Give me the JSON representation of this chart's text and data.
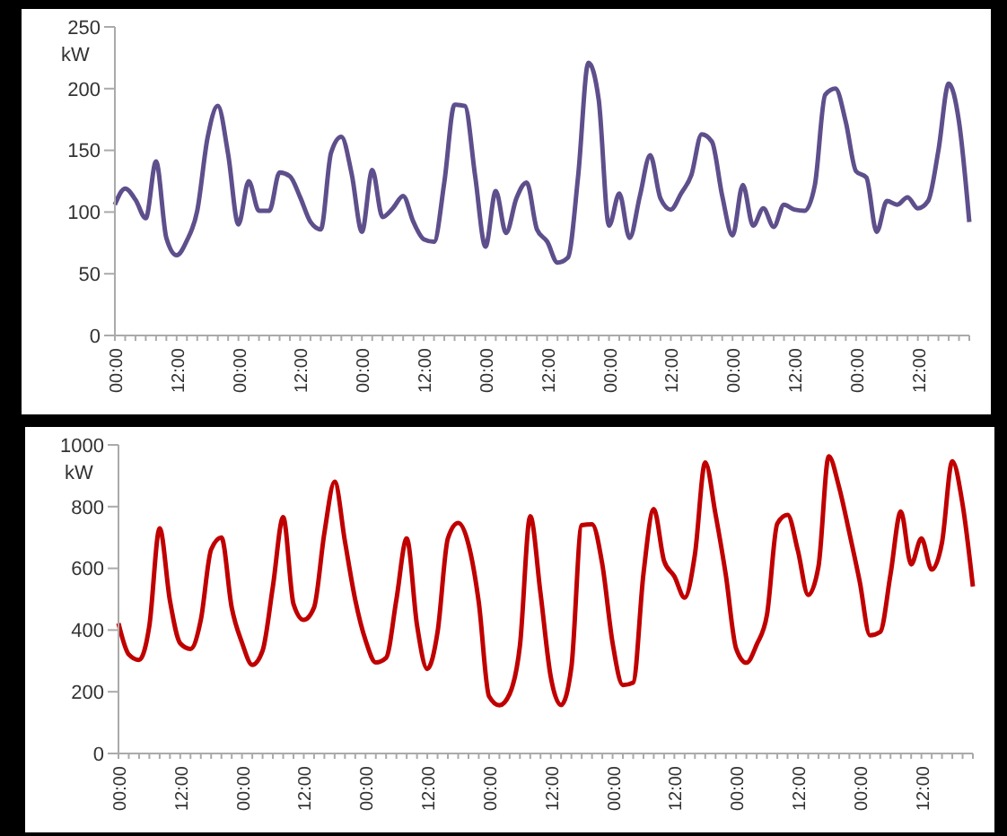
{
  "chart_data": [
    {
      "type": "line",
      "ylabel": "kW",
      "categories": [
        "00:00",
        null,
        null,
        null,
        null,
        null,
        "12:00",
        null,
        null,
        null,
        null,
        null,
        "00:00",
        null,
        null,
        null,
        null,
        null,
        "12:00",
        null,
        null,
        null,
        null,
        null,
        "00:00",
        null,
        null,
        null,
        null,
        null,
        "12:00",
        null,
        null,
        null,
        null,
        null,
        "00:00",
        null,
        null,
        null,
        null,
        null,
        "12:00",
        null,
        null,
        null,
        null,
        null,
        "00:00",
        null,
        null,
        null,
        null,
        null,
        "12:00",
        null,
        null,
        null,
        null,
        null,
        "00:00",
        null,
        null,
        null,
        null,
        null,
        "12:00",
        null,
        null,
        null,
        null,
        null,
        "00:00",
        null,
        null,
        null,
        null,
        null,
        "12:00",
        null,
        null,
        null,
        null,
        null
      ],
      "ylim": [
        0,
        250
      ],
      "yticks": [
        0,
        50,
        100,
        150,
        200,
        250
      ],
      "series": [
        {
          "color": "#5e4f8c",
          "values": [
            106,
            119,
            110,
            95,
            141,
            79,
            65,
            77,
            101,
            160,
            186,
            147,
            90,
            125,
            101,
            101,
            132,
            129,
            112,
            92,
            86,
            148,
            161,
            131,
            84,
            134,
            96,
            103,
            113,
            92,
            78,
            76,
            124,
            187,
            186,
            129,
            72,
            117,
            83,
            111,
            124,
            86,
            76,
            59,
            63,
            129,
            221,
            191,
            89,
            115,
            79,
            113,
            146,
            111,
            102,
            115,
            130,
            163,
            157,
            113,
            81,
            122,
            89,
            103,
            88,
            106,
            102,
            101,
            122,
            195,
            200,
            173,
            133,
            128,
            84,
            109,
            106,
            112,
            103,
            109,
            150,
            204,
            173,
            92
          ]
        }
      ]
    },
    {
      "type": "line",
      "ylabel": "kW",
      "categories": [
        "00:00",
        null,
        null,
        null,
        null,
        null,
        "12:00",
        null,
        null,
        null,
        null,
        null,
        "00:00",
        null,
        null,
        null,
        null,
        null,
        "12:00",
        null,
        null,
        null,
        null,
        null,
        "00:00",
        null,
        null,
        null,
        null,
        null,
        "12:00",
        null,
        null,
        null,
        null,
        null,
        "00:00",
        null,
        null,
        null,
        null,
        null,
        "12:00",
        null,
        null,
        null,
        null,
        null,
        "00:00",
        null,
        null,
        null,
        null,
        null,
        "12:00",
        null,
        null,
        null,
        null,
        null,
        "00:00",
        null,
        null,
        null,
        null,
        null,
        "12:00",
        null,
        null,
        null,
        null,
        null,
        "00:00",
        null,
        null,
        null,
        null,
        null,
        "12:00",
        null,
        null,
        null,
        null,
        null
      ],
      "ylim": [
        0,
        1000
      ],
      "yticks": [
        0,
        200,
        400,
        600,
        800,
        1000
      ],
      "series": [
        {
          "color": "#c00000",
          "values": [
            422,
            321,
            303,
            414,
            730,
            495,
            357,
            339,
            433,
            661,
            700,
            473,
            359,
            287,
            333,
            541,
            766,
            485,
            433,
            473,
            714,
            881,
            687,
            498,
            367,
            295,
            310,
            499,
            697,
            416,
            274,
            394,
            697,
            747,
            678,
            490,
            185,
            156,
            193,
            350,
            769,
            518,
            247,
            157,
            280,
            740,
            743,
            613,
            358,
            222,
            230,
            583,
            792,
            624,
            574,
            505,
            646,
            943,
            775,
            578,
            340,
            294,
            353,
            450,
            745,
            773,
            657,
            514,
            606,
            963,
            863,
            715,
            558,
            383,
            394,
            581,
            784,
            613,
            697,
            596,
            684,
            947,
            807,
            541
          ]
        }
      ]
    }
  ]
}
